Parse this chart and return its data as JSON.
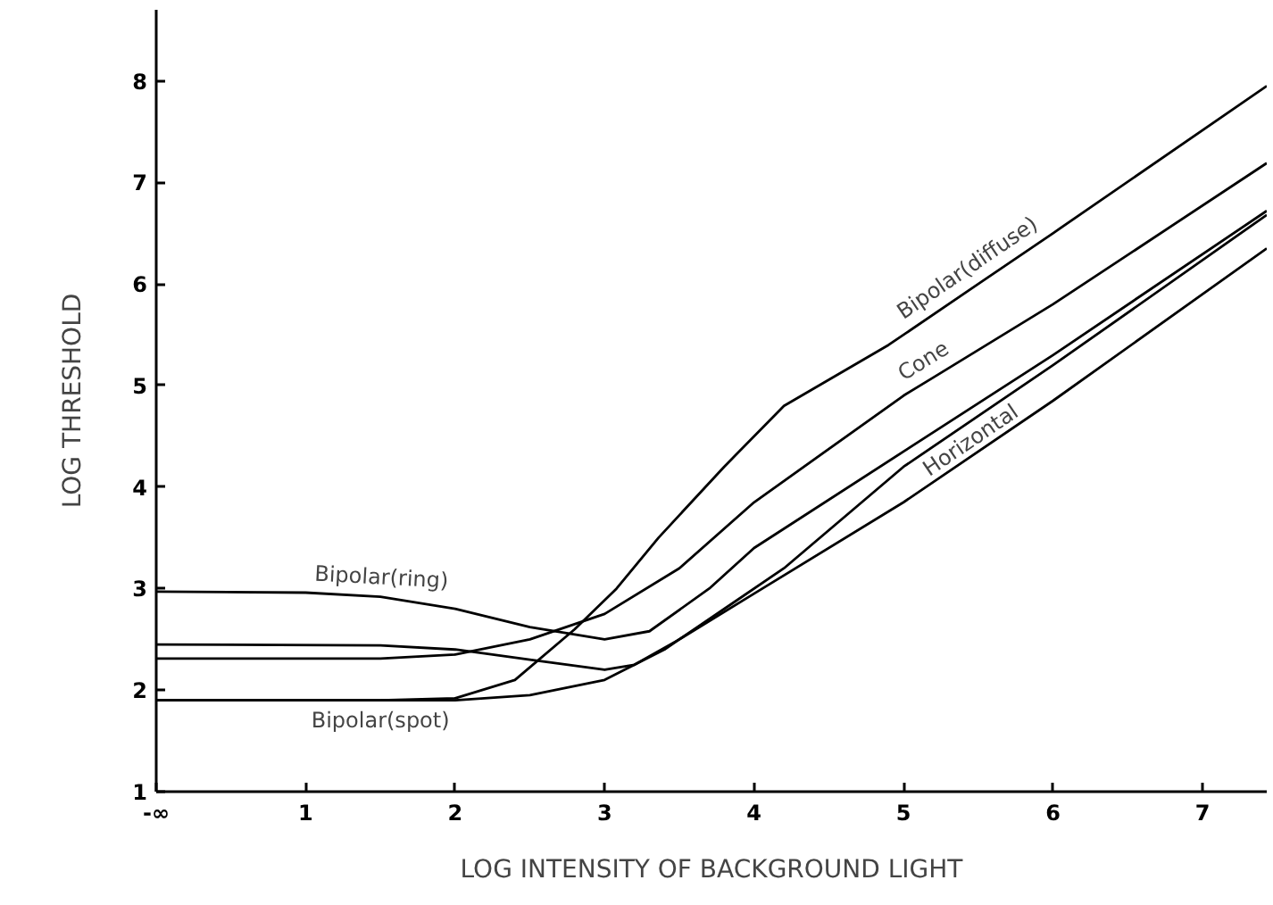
{
  "chart_data": {
    "type": "line",
    "xlabel": "LOG INTENSITY OF BACKGROUND LIGHT",
    "ylabel": "LOG THRESHOLD",
    "xlim": [
      0,
      7.43
    ],
    "ylim": [
      1,
      8.7
    ],
    "xticks": [
      {
        "value": 0,
        "label": "-∞"
      },
      1,
      2,
      3,
      4,
      5,
      6,
      7
    ],
    "yticks": [
      1,
      2,
      3,
      4,
      5,
      6,
      7,
      8
    ],
    "grid": false,
    "marker": "none",
    "line_style": "solid",
    "series": [
      {
        "color": "#000000",
        "x": [
          0,
          1.0,
          1.5,
          2.0,
          2.5,
          3.0,
          3.3,
          3.7,
          4.0,
          5.0,
          6.0,
          7.43
        ],
        "values": [
          2.97,
          2.96,
          2.92,
          2.8,
          2.62,
          2.5,
          2.58,
          3.0,
          3.4,
          4.35,
          5.3,
          6.72
        ]
      },
      {
        "color": "#000000",
        "x": [
          0,
          1.5,
          2.0,
          2.5,
          3.0,
          3.4,
          3.8,
          4.2,
          5.0,
          6.0,
          7.43
        ],
        "values": [
          1.9,
          1.9,
          1.9,
          1.95,
          2.1,
          2.4,
          2.8,
          3.2,
          4.2,
          5.2,
          6.68
        ]
      },
      {
        "color": "#000000",
        "x": [
          0,
          1.5,
          2.0,
          2.4,
          2.8,
          3.08,
          3.36,
          3.8,
          4.2,
          4.9,
          5.5,
          6.0,
          7.43
        ],
        "values": [
          1.9,
          1.9,
          1.92,
          2.1,
          2.6,
          3.0,
          3.5,
          4.2,
          4.8,
          5.4,
          6.0,
          6.5,
          7.95
        ]
      },
      {
        "color": "#000000",
        "x": [
          0,
          1.5,
          2.0,
          2.5,
          3.0,
          3.5,
          4.0,
          5.0,
          5.2,
          6.0,
          7.43
        ],
        "values": [
          2.31,
          2.31,
          2.35,
          2.5,
          2.75,
          3.2,
          3.85,
          4.9,
          5.08,
          5.8,
          7.19
        ]
      },
      {
        "color": "#000000",
        "x": [
          0,
          1.5,
          2.0,
          2.5,
          3.0,
          3.2,
          3.5,
          4.0,
          5.0,
          6.0,
          7.43
        ],
        "values": [
          2.45,
          2.44,
          2.4,
          2.3,
          2.2,
          2.25,
          2.5,
          2.95,
          3.85,
          4.85,
          6.35
        ]
      }
    ],
    "annotations": [
      {
        "text": "Bipolar(ring)",
        "x": 1.5,
        "y": 2.92
      },
      {
        "text": "Bipolar(spot)",
        "x": 1.5,
        "y": 1.9
      },
      {
        "text": "Bipolar(diffuse)",
        "x": 5.5,
        "y": 6.0
      },
      {
        "text": "Cone",
        "x": 5.2,
        "y": 5.08
      },
      {
        "text": "Horizontal",
        "x": 5.5,
        "y": 4.35
      }
    ]
  }
}
